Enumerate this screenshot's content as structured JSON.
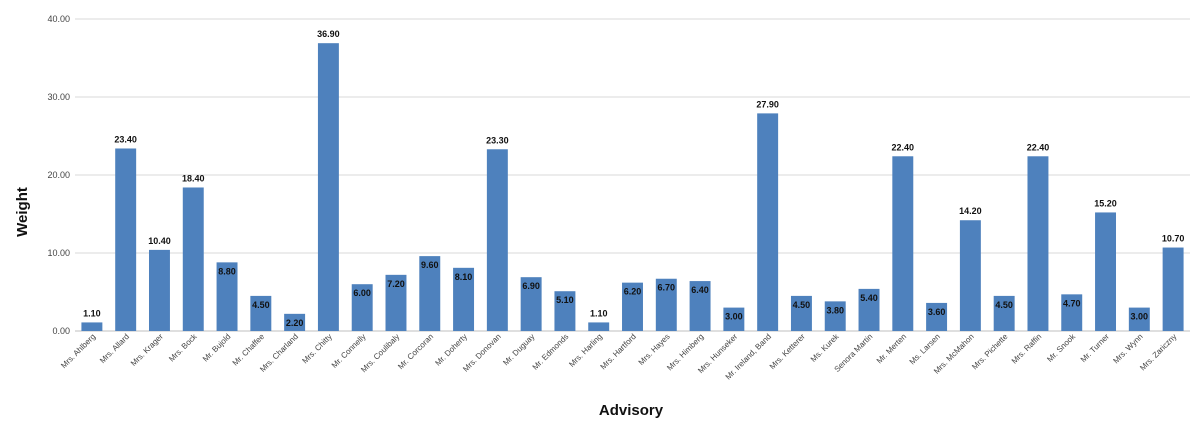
{
  "chart_data": {
    "type": "bar",
    "xlabel": "Advisory",
    "ylabel": "Weight",
    "ylim": [
      0,
      40
    ],
    "yticks": [
      "0.00",
      "10.00",
      "20.00",
      "30.00",
      "40.00"
    ],
    "grid": true,
    "legend": "none",
    "bar_color": "#4e81bd",
    "categories": [
      "Mrs. Ahlberg",
      "Mrs. Allard",
      "Mrs. Krager",
      "Mrs. Bock",
      "Mr. Bujold",
      "Mr. Chaffee",
      "Mrs. Charland",
      "Mrs. Chitty",
      "Mr. Connelly",
      "Mrs. Coulibaly",
      "Mr. Corcoran",
      "Mr. Doherty",
      "Mrs. Donovan",
      "Mr. Duguay",
      "Mr. Edmonds",
      "Mrs. Harling",
      "Mrs. Hartford",
      "Mrs. Hayes",
      "Mrs. Himberg",
      "Mrs. Hunseker",
      "Mr. Ireland, Band",
      "Mrs. Ketterer",
      "Ms. Kurek",
      "Senora Martin",
      "Mr. Merten",
      "Ms. Larsen",
      "Mrs. McMahon",
      "Mrs. Pichette",
      "Mrs. Raffin",
      "Mr. Snook",
      "Mr. Turner",
      "Mrs. Wynn",
      "Mrs. Zariczny"
    ],
    "values": [
      1.1,
      23.4,
      10.4,
      18.4,
      8.8,
      4.5,
      2.2,
      36.9,
      6.0,
      7.2,
      9.6,
      8.1,
      23.3,
      6.9,
      5.1,
      1.1,
      6.2,
      6.7,
      6.4,
      3.0,
      27.9,
      4.5,
      3.8,
      5.4,
      22.4,
      3.6,
      14.2,
      4.5,
      22.4,
      4.7,
      15.2,
      3.0,
      10.7
    ],
    "data_labels": [
      "1.10",
      "23.40",
      "10.40",
      "18.40",
      "8.80",
      "4.50",
      "2.20",
      "36.90",
      "6.00",
      "7.20",
      "9.60",
      "8.10",
      "23.30",
      "6.90",
      "5.10",
      "1.10",
      "6.20",
      "6.70",
      "6.40",
      "3.00",
      "27.90",
      "4.50",
      "3.80",
      "5.40",
      "22.40",
      "3.60",
      "14.20",
      "4.50",
      "22.40",
      "4.70",
      "15.20",
      "3.00",
      "10.70"
    ]
  }
}
